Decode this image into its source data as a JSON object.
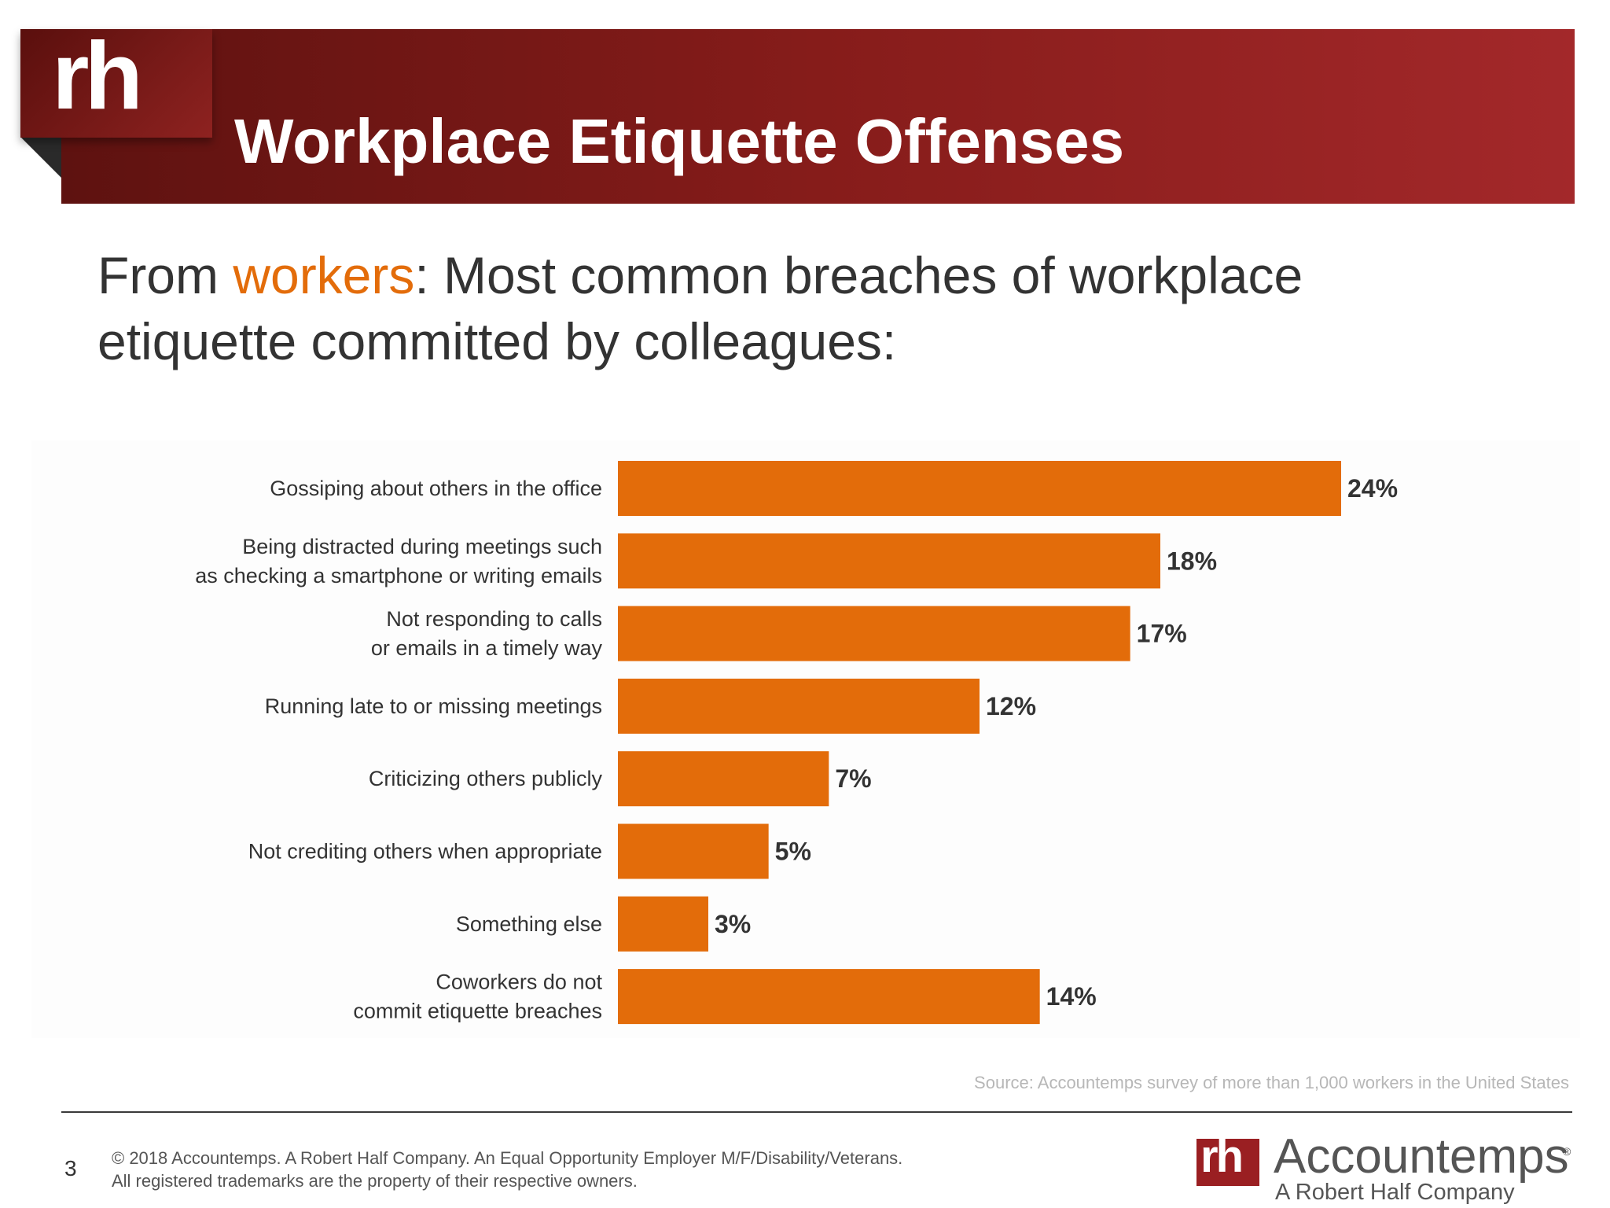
{
  "header": {
    "logo_text": "rh",
    "title": "Workplace Etiquette Offenses"
  },
  "subtitle": {
    "prefix": "From ",
    "highlight": "workers",
    "rest": ": Most common breaches of workplace etiquette committed by colleagues:"
  },
  "colors": {
    "bar": "#e36c0a",
    "highlight": "#e36c0a",
    "header": "#8b1f1d"
  },
  "chart_data": {
    "type": "bar",
    "orientation": "horizontal",
    "title": "",
    "xlabel": "",
    "ylabel": "",
    "categories": [
      [
        "Gossiping about others in the office"
      ],
      [
        "Being distracted during meetings such",
        "as checking a smartphone or writing emails"
      ],
      [
        "Not responding to calls",
        "or emails in a timely way"
      ],
      [
        "Running late to or missing meetings"
      ],
      [
        "Criticizing others publicly"
      ],
      [
        "Not crediting others when appropriate"
      ],
      [
        "Something else"
      ],
      [
        "Coworkers do not",
        "commit etiquette breaches"
      ]
    ],
    "values": [
      24,
      18,
      17,
      12,
      7,
      5,
      3,
      14
    ],
    "value_labels": [
      "24%",
      "18%",
      "17%",
      "12%",
      "7%",
      "5%",
      "3%",
      "14%"
    ],
    "xlim": [
      0,
      24
    ],
    "grid": false,
    "legend": "none"
  },
  "source": "Source: Accountemps survey of more than 1,000 workers in the United States",
  "footer": {
    "page_number": "3",
    "line1": "© 2018 Accountemps. A Robert Half Company. An Equal Opportunity Employer M/F/Disability/Veterans.",
    "line2": "All registered trademarks are the property of their respective owners.",
    "brand_logo": "rh",
    "brand_name": "Accountemps",
    "brand_reg": "®",
    "brand_tagline": "A Robert Half Company"
  }
}
